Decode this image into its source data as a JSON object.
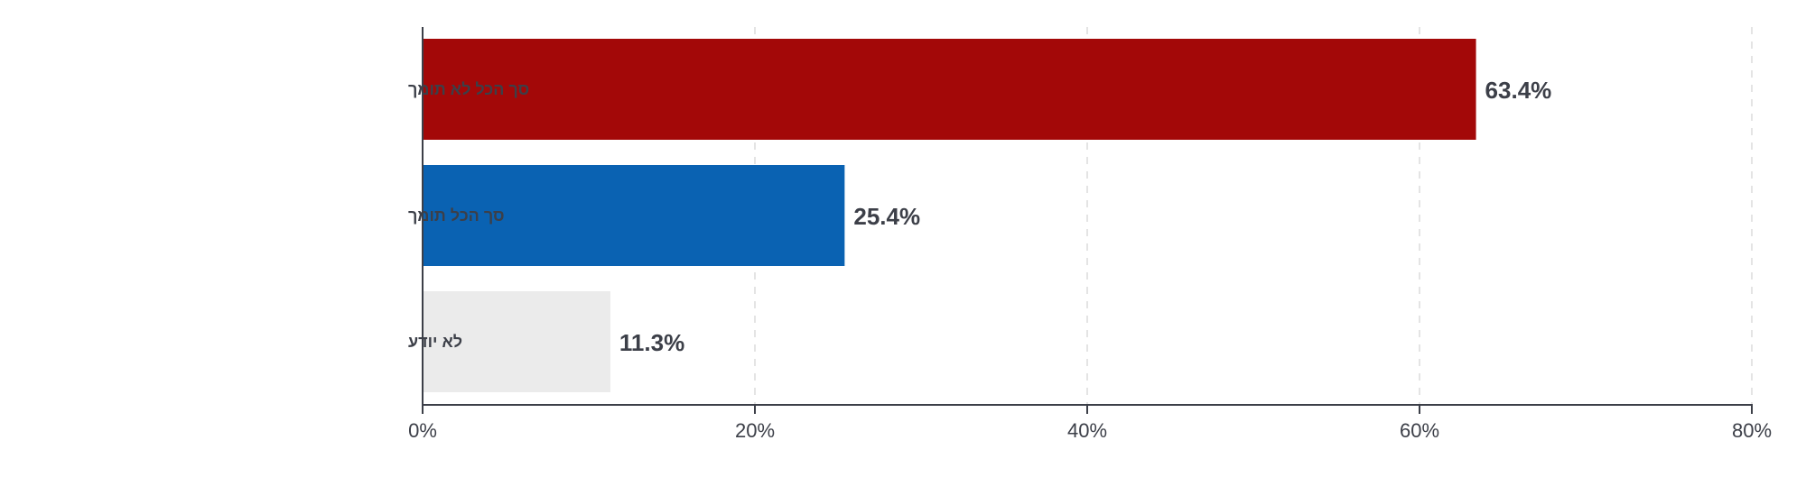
{
  "chart_data": {
    "type": "bar",
    "orientation": "horizontal",
    "categories": [
      "סך הכל לא תומך",
      "סך הכל תומך",
      "לא יודע"
    ],
    "values": [
      63.4,
      25.4,
      11.3
    ],
    "value_labels": [
      "63.4%",
      "25.4%",
      "11.3%"
    ],
    "bar_colors": [
      "#a30808",
      "#0a62b2",
      "#ebebeb"
    ],
    "xlim": [
      0,
      80
    ],
    "xticks": [
      0,
      20,
      40,
      60,
      80
    ],
    "xtick_labels": [
      "0%",
      "20%",
      "40%",
      "60%",
      "80%"
    ],
    "grid": "vertical-dashed",
    "title": "",
    "xlabel": "",
    "ylabel": ""
  }
}
